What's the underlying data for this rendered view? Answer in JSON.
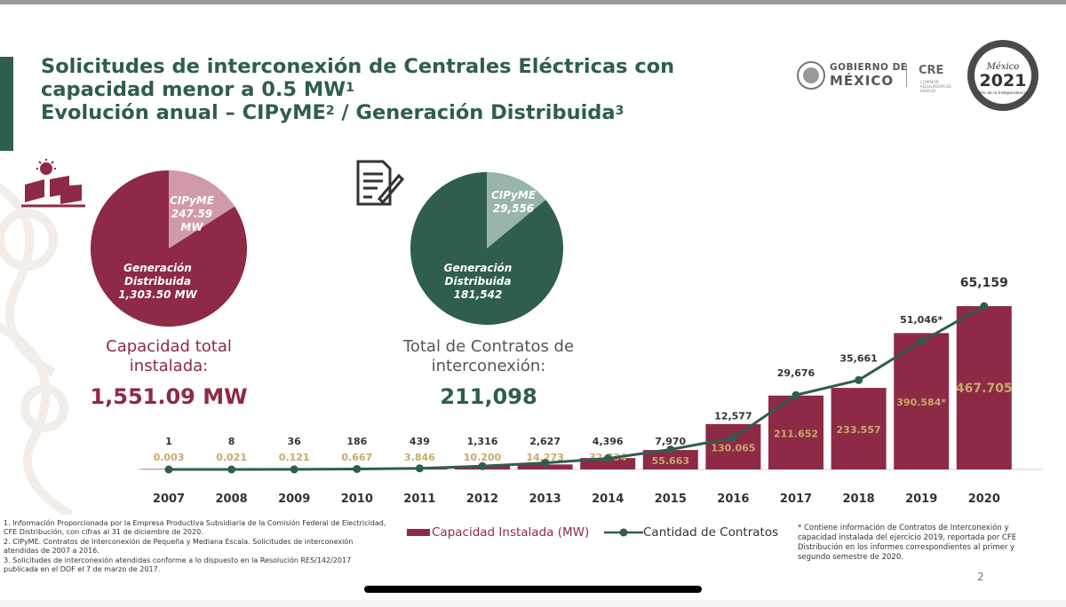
{
  "title": {
    "line1": "Solicitudes de interconexión de Centrales Eléctricas con",
    "line2": "capacidad menor a 0.5 MW",
    "line2_sup": "1",
    "line3": "Evolución anual – CIPyME",
    "line3_sup1": "2",
    "line3_mid": " / Generación Distribuida",
    "line3_sup2": "3"
  },
  "logos": {
    "gobierno_line1": "GOBIERNO DE",
    "gobierno_line2": "MÉXICO",
    "cre": "CRE",
    "cre_sub": "COMISIÓN REGULADORA DE ENERGÍA",
    "seal_text1": "México",
    "seal_year": "2021",
    "seal_text2": "Año de la Independencia"
  },
  "capacity": {
    "heading": "Capacidad total instalada:",
    "total": "1,551.09 MW",
    "pie": [
      {
        "label1": "CIPyME",
        "label2": "247.59",
        "label3": "MW",
        "value": 247.59,
        "color": "#d19aa8"
      },
      {
        "label1": "Generación",
        "label2": "Distribuida",
        "label3": "1,303.50 MW",
        "value": 1303.5,
        "color": "#8e2a45"
      }
    ]
  },
  "contracts": {
    "heading": "Total de Contratos de interconexión:",
    "total": "211,098",
    "pie": [
      {
        "label1": "CIPyME",
        "label2": "29,556",
        "value": 29556,
        "color": "#97b5aa"
      },
      {
        "label1": "Generación",
        "label2": "Distribuida",
        "label3": "181,542",
        "value": 181542,
        "color": "#2f5d4e"
      }
    ]
  },
  "chart_data": {
    "type": "bar",
    "categories": [
      "2007",
      "2008",
      "2009",
      "2010",
      "2011",
      "2012",
      "2013",
      "2014",
      "2015",
      "2016",
      "2017",
      "2018",
      "2019",
      "2020"
    ],
    "series": [
      {
        "name": "Capacidad Instalada (MW)",
        "type": "bar",
        "color": "#8e2a45",
        "values": [
          0.003,
          0.021,
          0.121,
          0.667,
          3.846,
          10.2,
          14.273,
          32.734,
          55.663,
          130.065,
          211.652,
          233.557,
          390.584,
          467.705
        ],
        "labels": [
          "0.003",
          "0.021",
          "0.121",
          "0.667",
          "3.846",
          "10.200",
          "14.273",
          "32.734",
          "55.663",
          "130.065",
          "211.652",
          "233.557",
          "390.584*",
          "467.705"
        ]
      },
      {
        "name": "Cantidad de Contratos",
        "type": "line",
        "color": "#2f5d4e",
        "values": [
          1,
          8,
          36,
          186,
          439,
          1316,
          2627,
          4396,
          7970,
          12577,
          29676,
          35661,
          51046,
          65159
        ],
        "labels": [
          "1",
          "8",
          "36",
          "186",
          "439",
          "1,316",
          "2,627",
          "4,396",
          "7,970",
          "12,577",
          "29,676",
          "35,661",
          "51,046*",
          "65,159"
        ]
      }
    ]
  },
  "legend": {
    "bar_label": "Capacidad Instalada (MW)",
    "line_label": "Cantidad de Contratos"
  },
  "footnotes": [
    "1. Información Proporcionada por la Empresa Productiva Subsidiaria de la Comisión Federal de Electricidad, CFE Distribución, con cifras al 31 de diciembre de 2020.",
    "2. CIPyME. Contratos de Interconexión de Pequeña y Mediana Escala. Solicitudes de interconexión atendidas de 2007 a 2016.",
    "3. Solicitudes de interconexión atendidas conforme a lo dispuesto en la Resolución RES/142/2017 publicada en el DOF el 7 de marzo de 2017."
  ],
  "asterisk_note": "* Contiene información de Contratos de Interconexión y capacidad instalada del ejercicio 2019, reportada por CFE Distribución en los informes correspondientes al primer y segundo semestre de 2020.",
  "page_number": "2"
}
